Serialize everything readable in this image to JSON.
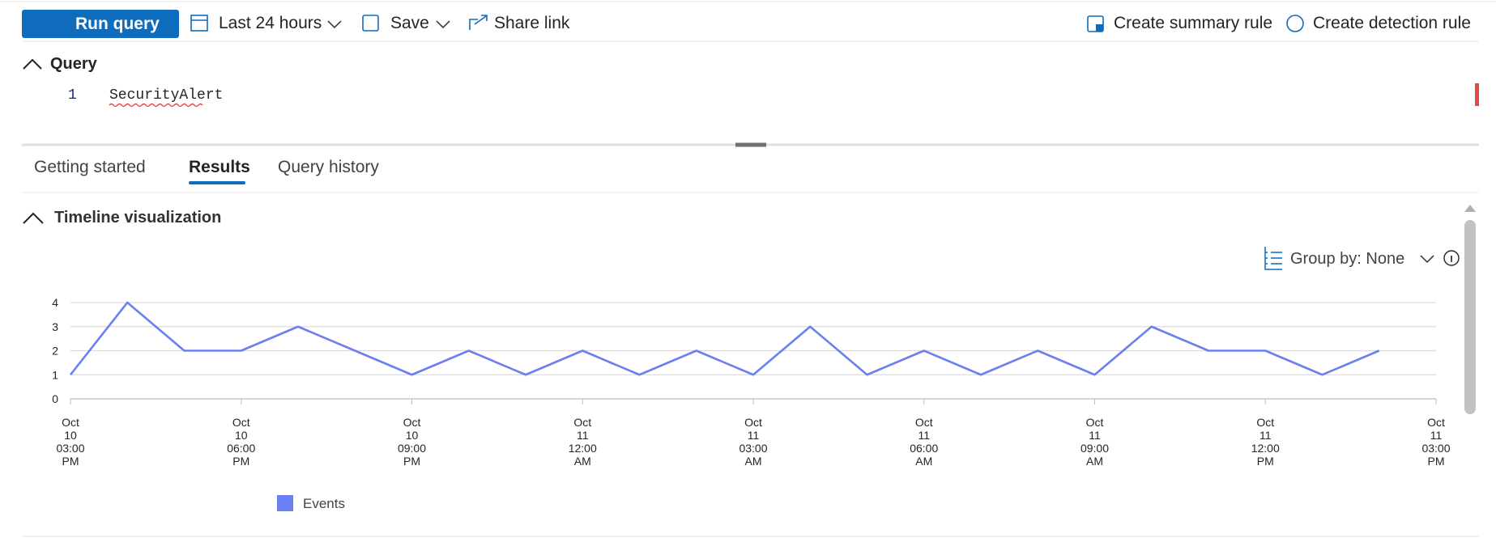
{
  "toolbar": {
    "run": "Run query",
    "time": "Last 24 hours",
    "save": "Save",
    "share": "Share link",
    "summary": "Create summary rule",
    "detection": "Create detection rule"
  },
  "query": {
    "title": "Query",
    "line_number": "1",
    "code": "SecurityAlert"
  },
  "tabs": [
    "Getting started",
    "Results",
    "Query history"
  ],
  "panel": {
    "title": "Timeline visualization",
    "group_by": "Group by: None"
  },
  "chart_data": {
    "type": "line",
    "categories": [
      "Oct 10 03:00 PM",
      null,
      null,
      "Oct 10 06:00 PM",
      null,
      null,
      "Oct 10 09:00 PM",
      null,
      null,
      "Oct 11 12:00 AM",
      null,
      null,
      "Oct 11 03:00 AM",
      null,
      null,
      "Oct 11 06:00 AM",
      null,
      null,
      "Oct 11 09:00 AM",
      null,
      null,
      "Oct 11 12:00 PM",
      null,
      null,
      "Oct 11 03:00 PM"
    ],
    "series": [
      {
        "name": "Events",
        "color": "#6b7ff0",
        "values": [
          1,
          4,
          2,
          2,
          3,
          2,
          1,
          2,
          1,
          2,
          1,
          2,
          1,
          3,
          1,
          2,
          1,
          2,
          1,
          3,
          2,
          2,
          1,
          2,
          null
        ]
      }
    ],
    "ylim": [
      0,
      4
    ],
    "yticks": [
      0,
      1,
      2,
      3,
      4
    ],
    "grid": true
  }
}
